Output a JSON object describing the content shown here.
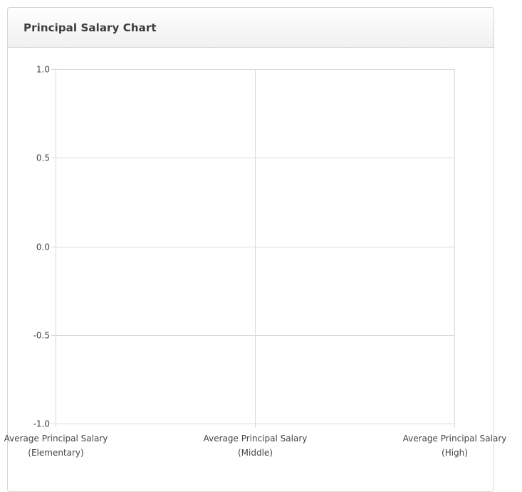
{
  "panel": {
    "title": "Principal Salary Chart"
  },
  "chart_data": {
    "type": "bar",
    "categories": [
      [
        "Average Principal Salary",
        "(Elementary)"
      ],
      [
        "Average Principal Salary",
        "(Middle)"
      ],
      [
        "Average Principal Salary",
        "(High)"
      ]
    ],
    "series": [],
    "title": "",
    "xlabel": "",
    "ylabel": "",
    "ylim": [
      -1.0,
      1.0
    ],
    "yticks": [
      "1.0",
      "0.5",
      "0.0",
      "-0.5",
      "-1.0"
    ],
    "grid": true,
    "legend": "none"
  },
  "colors": {
    "grid": "#d9d9d9",
    "axis_text": "#444444",
    "panel_border": "#d6d6d6",
    "title_text": "#3c3c3c"
  }
}
